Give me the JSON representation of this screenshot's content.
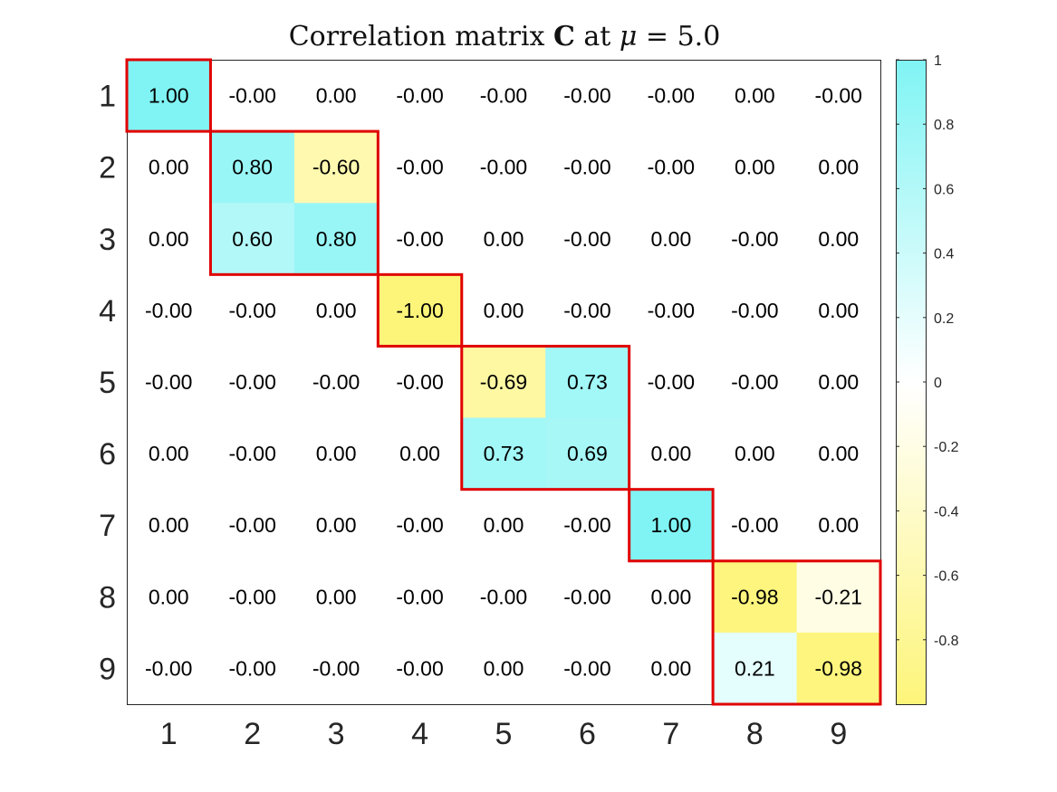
{
  "chart_data": {
    "type": "heatmap",
    "title": {
      "prefix": "Correlation matrix ",
      "symbol": "C",
      "middle": " at ",
      "param": "μ",
      "suffix": " = 5.0"
    },
    "row_labels": [
      "1",
      "2",
      "3",
      "4",
      "5",
      "6",
      "7",
      "8",
      "9"
    ],
    "col_labels": [
      "1",
      "2",
      "3",
      "4",
      "5",
      "6",
      "7",
      "8",
      "9"
    ],
    "values": [
      [
        1.0,
        -0.0,
        0.0,
        -0.0,
        -0.0,
        -0.0,
        -0.0,
        0.0,
        -0.0
      ],
      [
        0.0,
        0.8,
        -0.6,
        -0.0,
        -0.0,
        -0.0,
        -0.0,
        0.0,
        0.0
      ],
      [
        0.0,
        0.6,
        0.8,
        -0.0,
        0.0,
        -0.0,
        0.0,
        -0.0,
        0.0
      ],
      [
        -0.0,
        -0.0,
        0.0,
        -1.0,
        0.0,
        -0.0,
        -0.0,
        -0.0,
        0.0
      ],
      [
        -0.0,
        -0.0,
        -0.0,
        -0.0,
        -0.69,
        0.73,
        -0.0,
        -0.0,
        0.0
      ],
      [
        0.0,
        -0.0,
        0.0,
        0.0,
        0.73,
        0.69,
        0.0,
        0.0,
        0.0
      ],
      [
        0.0,
        -0.0,
        0.0,
        -0.0,
        0.0,
        -0.0,
        1.0,
        -0.0,
        0.0
      ],
      [
        0.0,
        -0.0,
        0.0,
        -0.0,
        -0.0,
        -0.0,
        0.0,
        -0.98,
        -0.21
      ],
      [
        -0.0,
        -0.0,
        -0.0,
        -0.0,
        0.0,
        -0.0,
        0.0,
        0.21,
        -0.98
      ]
    ],
    "cell_labels": [
      [
        "1.00",
        "-0.00",
        "0.00",
        "-0.00",
        "-0.00",
        "-0.00",
        "-0.00",
        "0.00",
        "-0.00"
      ],
      [
        "0.00",
        "0.80",
        "-0.60",
        "-0.00",
        "-0.00",
        "-0.00",
        "-0.00",
        "0.00",
        "0.00"
      ],
      [
        "0.00",
        "0.60",
        "0.80",
        "-0.00",
        "0.00",
        "-0.00",
        "0.00",
        "-0.00",
        "0.00"
      ],
      [
        "-0.00",
        "-0.00",
        "0.00",
        "-1.00",
        "0.00",
        "-0.00",
        "-0.00",
        "-0.00",
        "0.00"
      ],
      [
        "-0.00",
        "-0.00",
        "-0.00",
        "-0.00",
        "-0.69",
        "0.73",
        "-0.00",
        "-0.00",
        "0.00"
      ],
      [
        "0.00",
        "-0.00",
        "0.00",
        "0.00",
        "0.73",
        "0.69",
        "0.00",
        "0.00",
        "0.00"
      ],
      [
        "0.00",
        "-0.00",
        "0.00",
        "-0.00",
        "0.00",
        "-0.00",
        "1.00",
        "-0.00",
        "0.00"
      ],
      [
        "0.00",
        "-0.00",
        "0.00",
        "-0.00",
        "-0.00",
        "-0.00",
        "0.00",
        "-0.98",
        "-0.21"
      ],
      [
        "-0.00",
        "-0.00",
        "-0.00",
        "-0.00",
        "0.00",
        "-0.00",
        "0.00",
        "0.21",
        "-0.98"
      ]
    ],
    "blocks": [
      {
        "start": 1,
        "end": 1
      },
      {
        "start": 2,
        "end": 3
      },
      {
        "start": 4,
        "end": 4
      },
      {
        "start": 5,
        "end": 6
      },
      {
        "start": 7,
        "end": 7
      },
      {
        "start": 8,
        "end": 9
      }
    ],
    "colorbar": {
      "range": [
        -1,
        1
      ],
      "ticks": [
        1,
        0.8,
        0.6,
        0.4,
        0.2,
        0,
        -0.2,
        -0.4,
        -0.6,
        -0.8
      ],
      "tick_labels": [
        "1",
        "0.8",
        "0.6",
        "0.4",
        "0.2",
        "0",
        "-0.2",
        "-0.4",
        "-0.6",
        "-0.8"
      ],
      "positive_color": "#80f4f4",
      "zero_color": "#ffffff",
      "negative_color": "#fdf57a",
      "location": "right"
    },
    "block_outline_color": "#e00000",
    "frame_color": "#262626"
  }
}
